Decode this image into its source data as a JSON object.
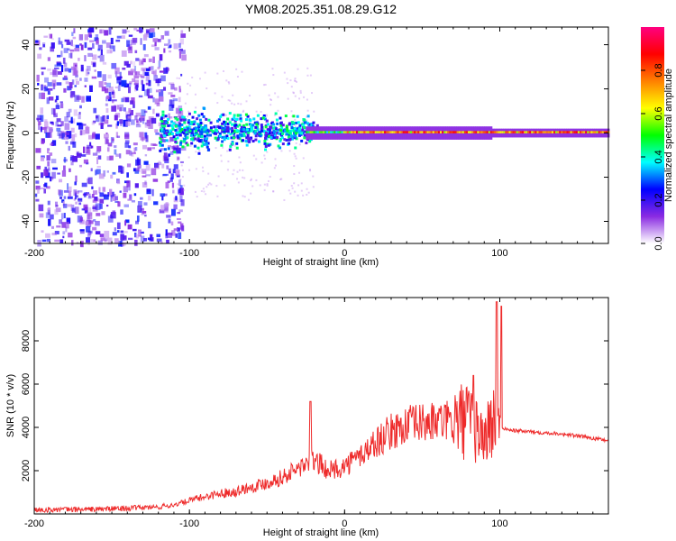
{
  "title": "YM08.2025.351.08.29.G12",
  "chart_data": [
    {
      "type": "heatmap",
      "xlabel": "Height of straight line (km)",
      "ylabel": "Frequency (Hz)",
      "xlim": [
        -200,
        170
      ],
      "ylim": [
        -50,
        48
      ],
      "xticks": [
        -200,
        -100,
        0,
        100
      ],
      "yticks": [
        -40,
        -20,
        0,
        20,
        40
      ],
      "colorbar": {
        "label": "Normalized spectral amplitude",
        "range": [
          0.0,
          1.0
        ],
        "ticks": [
          0.0,
          0.2,
          0.4,
          0.6,
          0.8
        ],
        "tick_labels": [
          "0.0",
          "0.2",
          "0.4",
          "0.6",
          "0.8"
        ],
        "colors": [
          "#ffffff",
          "#8a2be2",
          "#0000ff",
          "#00ffff",
          "#00ff00",
          "#ffff00",
          "#ff8000",
          "#ff0000",
          "#ff0080"
        ]
      },
      "description_values": {
        "noise_region_x": [
          -200,
          -110
        ],
        "signal_onset_x": -120,
        "narrowband_start_x": -25,
        "center_frequency": 0
      }
    },
    {
      "type": "line",
      "xlabel": "Height of straight line (km)",
      "ylabel": "SNR (10 * v/v)",
      "xlim": [
        -200,
        170
      ],
      "ylim": [
        0,
        10000
      ],
      "xticks": [
        -200,
        -100,
        0,
        100
      ],
      "yticks": [
        2000,
        4000,
        6000,
        8000
      ],
      "color": "#ee2a2a",
      "x": [
        -200,
        -180,
        -160,
        -140,
        -120,
        -110,
        -100,
        -90,
        -80,
        -70,
        -60,
        -50,
        -40,
        -30,
        -20,
        -10,
        0,
        10,
        20,
        30,
        40,
        50,
        60,
        70,
        80,
        90,
        95,
        100,
        102,
        110,
        120,
        130,
        140,
        150,
        160,
        170
      ],
      "values": [
        200,
        200,
        220,
        260,
        320,
        420,
        620,
        800,
        950,
        1050,
        1250,
        1450,
        1700,
        2100,
        2500,
        2000,
        2200,
        2700,
        3300,
        3800,
        4100,
        4200,
        4250,
        4300,
        4300,
        3500,
        4200,
        4500,
        3950,
        3850,
        3800,
        3750,
        3700,
        3600,
        3500,
        3400
      ],
      "spikes": [
        [
          -22,
          5200
        ],
        [
          83,
          6400
        ],
        [
          98,
          9800
        ],
        [
          101,
          9600
        ]
      ]
    }
  ]
}
